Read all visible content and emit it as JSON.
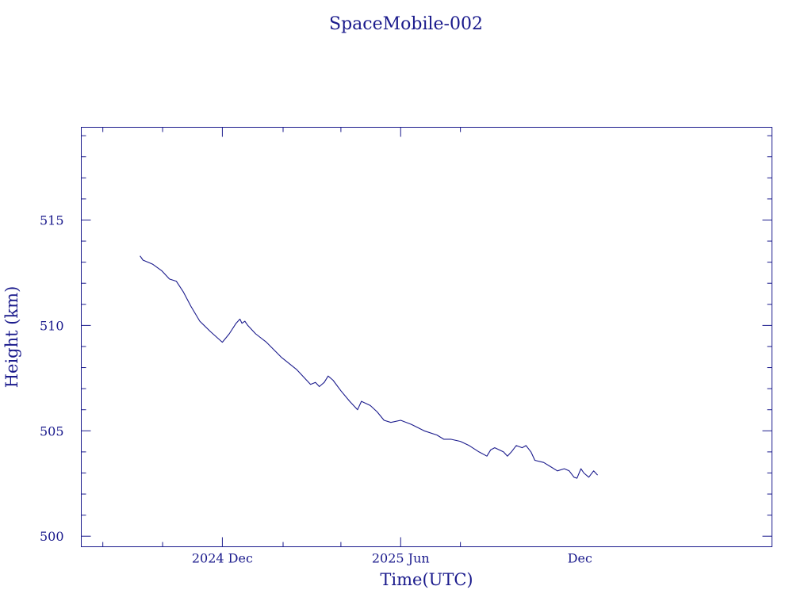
{
  "chart_data": {
    "type": "line",
    "title": "SpaceMobile-002",
    "xlabel": "Time(UTC)",
    "ylabel": "Height (km)",
    "x_axis": {
      "type": "date",
      "range": [
        "2024-07-10",
        "2026-06-15"
      ]
    },
    "ylim": [
      499.5,
      519.4
    ],
    "y_ticks": [
      500,
      505,
      510,
      515
    ],
    "x_ticks": [
      {
        "label": "2024 Dec",
        "date": "2024-12-01"
      },
      {
        "label": "2025 Jun",
        "date": "2025-06-01"
      },
      {
        "label": "Dec",
        "date": "2025-12-01"
      }
    ],
    "grid": false,
    "color": "#1a1a8c",
    "series": [
      {
        "points": [
          [
            "2024-09-08",
            513.3
          ],
          [
            "2024-09-11",
            513.1
          ],
          [
            "2024-09-21",
            512.9
          ],
          [
            "2024-09-30",
            512.6
          ],
          [
            "2024-10-08",
            512.2
          ],
          [
            "2024-10-15",
            512.1
          ],
          [
            "2024-10-22",
            511.6
          ],
          [
            "2024-10-30",
            510.9
          ],
          [
            "2024-11-08",
            510.2
          ],
          [
            "2024-11-19",
            509.7
          ],
          [
            "2024-12-01",
            509.2
          ],
          [
            "2024-12-08",
            509.6
          ],
          [
            "2024-12-15",
            510.1
          ],
          [
            "2024-12-19",
            510.3
          ],
          [
            "2024-12-21",
            510.1
          ],
          [
            "2024-12-24",
            510.2
          ],
          [
            "2024-12-27",
            510.0
          ],
          [
            "2025-01-04",
            509.6
          ],
          [
            "2025-01-15",
            509.2
          ],
          [
            "2025-01-30",
            508.5
          ],
          [
            "2025-02-15",
            507.9
          ],
          [
            "2025-03-01",
            507.2
          ],
          [
            "2025-03-06",
            507.3
          ],
          [
            "2025-03-10",
            507.1
          ],
          [
            "2025-03-15",
            507.3
          ],
          [
            "2025-03-19",
            507.6
          ],
          [
            "2025-03-24",
            507.4
          ],
          [
            "2025-04-01",
            506.9
          ],
          [
            "2025-04-10",
            506.4
          ],
          [
            "2025-04-18",
            506.0
          ],
          [
            "2025-04-22",
            506.4
          ],
          [
            "2025-05-01",
            506.2
          ],
          [
            "2025-05-08",
            505.9
          ],
          [
            "2025-05-15",
            505.5
          ],
          [
            "2025-05-22",
            505.4
          ],
          [
            "2025-06-01",
            505.5
          ],
          [
            "2025-06-12",
            505.3
          ],
          [
            "2025-06-25",
            505.0
          ],
          [
            "2025-07-08",
            504.8
          ],
          [
            "2025-07-15",
            504.6
          ],
          [
            "2025-07-22",
            504.6
          ],
          [
            "2025-08-01",
            504.5
          ],
          [
            "2025-08-10",
            504.3
          ],
          [
            "2025-08-20",
            504.0
          ],
          [
            "2025-08-28",
            503.8
          ],
          [
            "2025-09-01",
            504.1
          ],
          [
            "2025-09-05",
            504.2
          ],
          [
            "2025-09-14",
            504.0
          ],
          [
            "2025-09-18",
            503.8
          ],
          [
            "2025-09-22",
            504.0
          ],
          [
            "2025-09-27",
            504.3
          ],
          [
            "2025-10-03",
            504.2
          ],
          [
            "2025-10-07",
            504.3
          ],
          [
            "2025-10-12",
            504.0
          ],
          [
            "2025-10-16",
            503.6
          ],
          [
            "2025-10-25",
            503.5
          ],
          [
            "2025-11-01",
            503.3
          ],
          [
            "2025-11-08",
            503.1
          ],
          [
            "2025-11-15",
            503.2
          ],
          [
            "2025-11-20",
            503.1
          ],
          [
            "2025-11-25",
            502.8
          ],
          [
            "2025-11-28",
            502.75
          ],
          [
            "2025-12-02",
            503.2
          ],
          [
            "2025-12-05",
            503.0
          ],
          [
            "2025-12-10",
            502.8
          ],
          [
            "2025-12-15",
            503.1
          ],
          [
            "2025-12-19",
            502.9
          ]
        ]
      }
    ]
  }
}
